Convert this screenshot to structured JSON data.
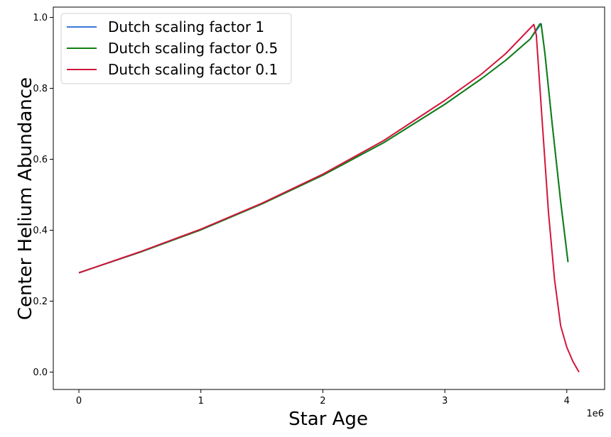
{
  "chart_data": {
    "type": "line",
    "title": "",
    "xlabel": "Star Age",
    "ylabel": "Center Helium Abundance",
    "x_offset_label": "1e6",
    "xlim": [
      -210000,
      4310000
    ],
    "ylim": [
      -0.049,
      1.029
    ],
    "x_ticks": [
      0,
      1000000,
      2000000,
      3000000,
      4000000
    ],
    "x_tick_labels": [
      "0",
      "1",
      "2",
      "3",
      "4"
    ],
    "y_ticks": [
      0.0,
      0.2,
      0.4,
      0.6,
      0.8,
      1.0
    ],
    "y_tick_labels": [
      "0.0",
      "0.2",
      "0.4",
      "0.6",
      "0.8",
      "1.0"
    ],
    "grid": false,
    "legend_position": "top-left",
    "series": [
      {
        "name": "Dutch scaling factor 1",
        "color": "#3a78d8",
        "points": [
          [
            0,
            0.28
          ],
          [
            500000,
            0.338
          ],
          [
            1000000,
            0.401
          ],
          [
            1500000,
            0.474
          ],
          [
            2000000,
            0.555
          ],
          [
            2500000,
            0.647
          ],
          [
            3000000,
            0.755
          ],
          [
            3300000,
            0.827
          ],
          [
            3500000,
            0.879
          ],
          [
            3700000,
            0.939
          ],
          [
            3790000,
            0.982
          ],
          [
            3820000,
            0.9
          ],
          [
            3880000,
            0.7
          ],
          [
            3950000,
            0.48
          ],
          [
            4010000,
            0.31
          ]
        ]
      },
      {
        "name": "Dutch scaling factor 0.5",
        "color": "#118011",
        "points": [
          [
            0,
            0.28
          ],
          [
            500000,
            0.338
          ],
          [
            1000000,
            0.401
          ],
          [
            1500000,
            0.474
          ],
          [
            2000000,
            0.555
          ],
          [
            2500000,
            0.647
          ],
          [
            3000000,
            0.755
          ],
          [
            3300000,
            0.827
          ],
          [
            3500000,
            0.879
          ],
          [
            3700000,
            0.939
          ],
          [
            3780000,
            0.982
          ],
          [
            3790000,
            0.98
          ],
          [
            3820000,
            0.9
          ],
          [
            3880000,
            0.7
          ],
          [
            3950000,
            0.48
          ],
          [
            4010000,
            0.31
          ]
        ]
      },
      {
        "name": "Dutch scaling factor 0.1",
        "color": "#d2163c",
        "points": [
          [
            0,
            0.28
          ],
          [
            500000,
            0.339
          ],
          [
            1000000,
            0.403
          ],
          [
            1500000,
            0.476
          ],
          [
            2000000,
            0.558
          ],
          [
            2500000,
            0.653
          ],
          [
            3000000,
            0.766
          ],
          [
            3300000,
            0.84
          ],
          [
            3500000,
            0.898
          ],
          [
            3730000,
            0.98
          ],
          [
            3750000,
            0.95
          ],
          [
            3800000,
            0.7
          ],
          [
            3850000,
            0.45
          ],
          [
            3900000,
            0.26
          ],
          [
            3950000,
            0.13
          ],
          [
            4000000,
            0.07
          ],
          [
            4050000,
            0.03
          ],
          [
            4100000,
            0.0
          ]
        ]
      }
    ]
  }
}
